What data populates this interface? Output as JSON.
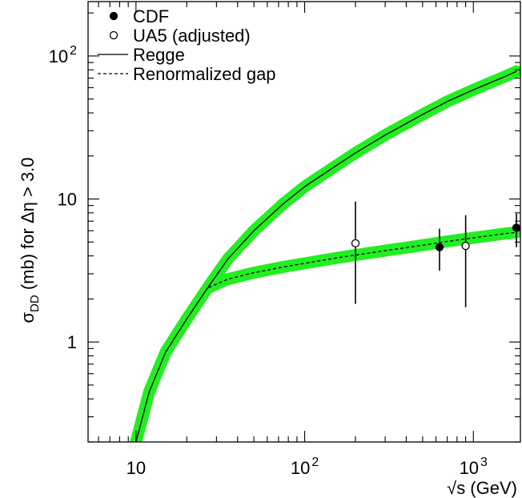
{
  "chart_data": {
    "type": "line",
    "xlabel": "√s (GeV)",
    "ylabel_parts": {
      "sigma": "σ",
      "sub": "DD",
      "rest": " (mb) for Δη > 3.0"
    },
    "xscale": "log",
    "yscale": "log",
    "xlim": [
      5.2,
      1900
    ],
    "ylim": [
      0.2,
      240
    ],
    "x_ticks": [
      {
        "value": 10,
        "base": "10",
        "exp": ""
      },
      {
        "value": 100,
        "base": "10",
        "exp": "2"
      },
      {
        "value": 1000,
        "base": "10",
        "exp": "3"
      }
    ],
    "y_ticks": [
      {
        "value": 1,
        "base": "1",
        "exp": ""
      },
      {
        "value": 10,
        "base": "10",
        "exp": ""
      },
      {
        "value": 100,
        "base": "10",
        "exp": "2"
      }
    ],
    "grid": false,
    "legend_position": "top-left",
    "legend": [
      {
        "label": "CDF",
        "marker": "filled-circle"
      },
      {
        "label": "UA5 (adjusted)",
        "marker": "open-circle"
      },
      {
        "label": "Regge",
        "marker": "solid-line"
      },
      {
        "label": "Renormalized gap",
        "marker": "dashed-line"
      }
    ],
    "band_color": "#22ee22",
    "series": [
      {
        "name": "Regge",
        "style": "solid",
        "x": [
          10,
          12,
          15,
          20,
          27,
          35,
          50,
          75,
          100,
          150,
          200,
          300,
          500,
          700,
          1000,
          1500,
          1800
        ],
        "y": [
          0.2,
          0.45,
          0.85,
          1.45,
          2.45,
          3.8,
          6.0,
          9.3,
          12.2,
          16.8,
          21.0,
          28.0,
          39.0,
          48.0,
          58.0,
          71.0,
          78.0
        ]
      },
      {
        "name": "Renormalized gap",
        "style": "dashed",
        "x": [
          27,
          35,
          50,
          75,
          100,
          150,
          200,
          300,
          500,
          700,
          1000,
          1500,
          1800
        ],
        "y": [
          2.4,
          2.75,
          3.05,
          3.35,
          3.55,
          3.85,
          4.05,
          4.35,
          4.75,
          5.05,
          5.35,
          5.7,
          5.85
        ]
      },
      {
        "name": "CDF",
        "marker": "filled-circle",
        "points": [
          {
            "x": 630,
            "y": 4.6,
            "ylo": 3.15,
            "yhi": 6.2
          },
          {
            "x": 1800,
            "y": 6.3,
            "ylo": 4.6,
            "yhi": 7.9
          }
        ]
      },
      {
        "name": "UA5 (adjusted)",
        "marker": "open-circle",
        "points": [
          {
            "x": 200,
            "y": 4.9,
            "ylo": 1.85,
            "yhi": 9.6
          },
          {
            "x": 900,
            "y": 4.7,
            "ylo": 1.75,
            "yhi": 7.7
          }
        ]
      }
    ]
  }
}
